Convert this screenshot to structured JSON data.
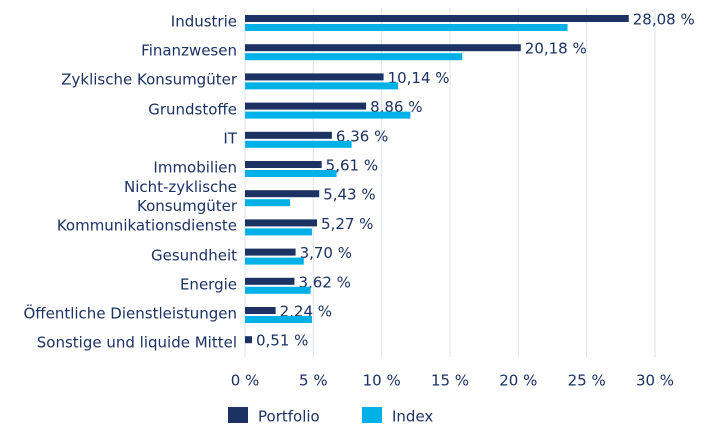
{
  "chart_data": {
    "type": "bar",
    "orientation": "horizontal",
    "categories": [
      "Industrie",
      "Finanzwesen",
      "Zyklische Konsumgüter",
      "Grundstoffe",
      "IT",
      "Immobilien",
      "Nicht-zyklische\nKonsumgüter",
      "Kommunikationsdienste",
      "Gesundheit",
      "Energie",
      "Öffentliche Dienstleistungen",
      "Sonstige und liquide Mittel"
    ],
    "series": [
      {
        "name": "Portfolio",
        "color": "#1b3263",
        "values": [
          28.08,
          20.18,
          10.14,
          8.86,
          6.36,
          5.61,
          5.43,
          5.27,
          3.7,
          3.62,
          2.24,
          0.51
        ],
        "value_labels": [
          "28,08 %",
          "20,18 %",
          "10,14 %",
          "8,86 %",
          "6,36 %",
          "5,61 %",
          "5,43 %",
          "5,27 %",
          "3,70 %",
          "3,62 %",
          "2,24 %",
          "0,51 %"
        ]
      },
      {
        "name": "Index",
        "color": "#00b1e8",
        "values": [
          23.6,
          15.9,
          11.2,
          12.1,
          7.8,
          6.7,
          3.3,
          4.9,
          4.3,
          4.8,
          4.9,
          0
        ]
      }
    ],
    "xlim": [
      0,
      30
    ],
    "xticks": [
      {
        "value": 0,
        "label": "0 %"
      },
      {
        "value": 5,
        "label": "5 %"
      },
      {
        "value": 10,
        "label": "10 %"
      },
      {
        "value": 15,
        "label": "15 %"
      },
      {
        "value": 20,
        "label": "20 %"
      },
      {
        "value": 25,
        "label": "25 %"
      },
      {
        "value": 30,
        "label": "30 %"
      }
    ],
    "grid": true,
    "legend": "bottom"
  }
}
